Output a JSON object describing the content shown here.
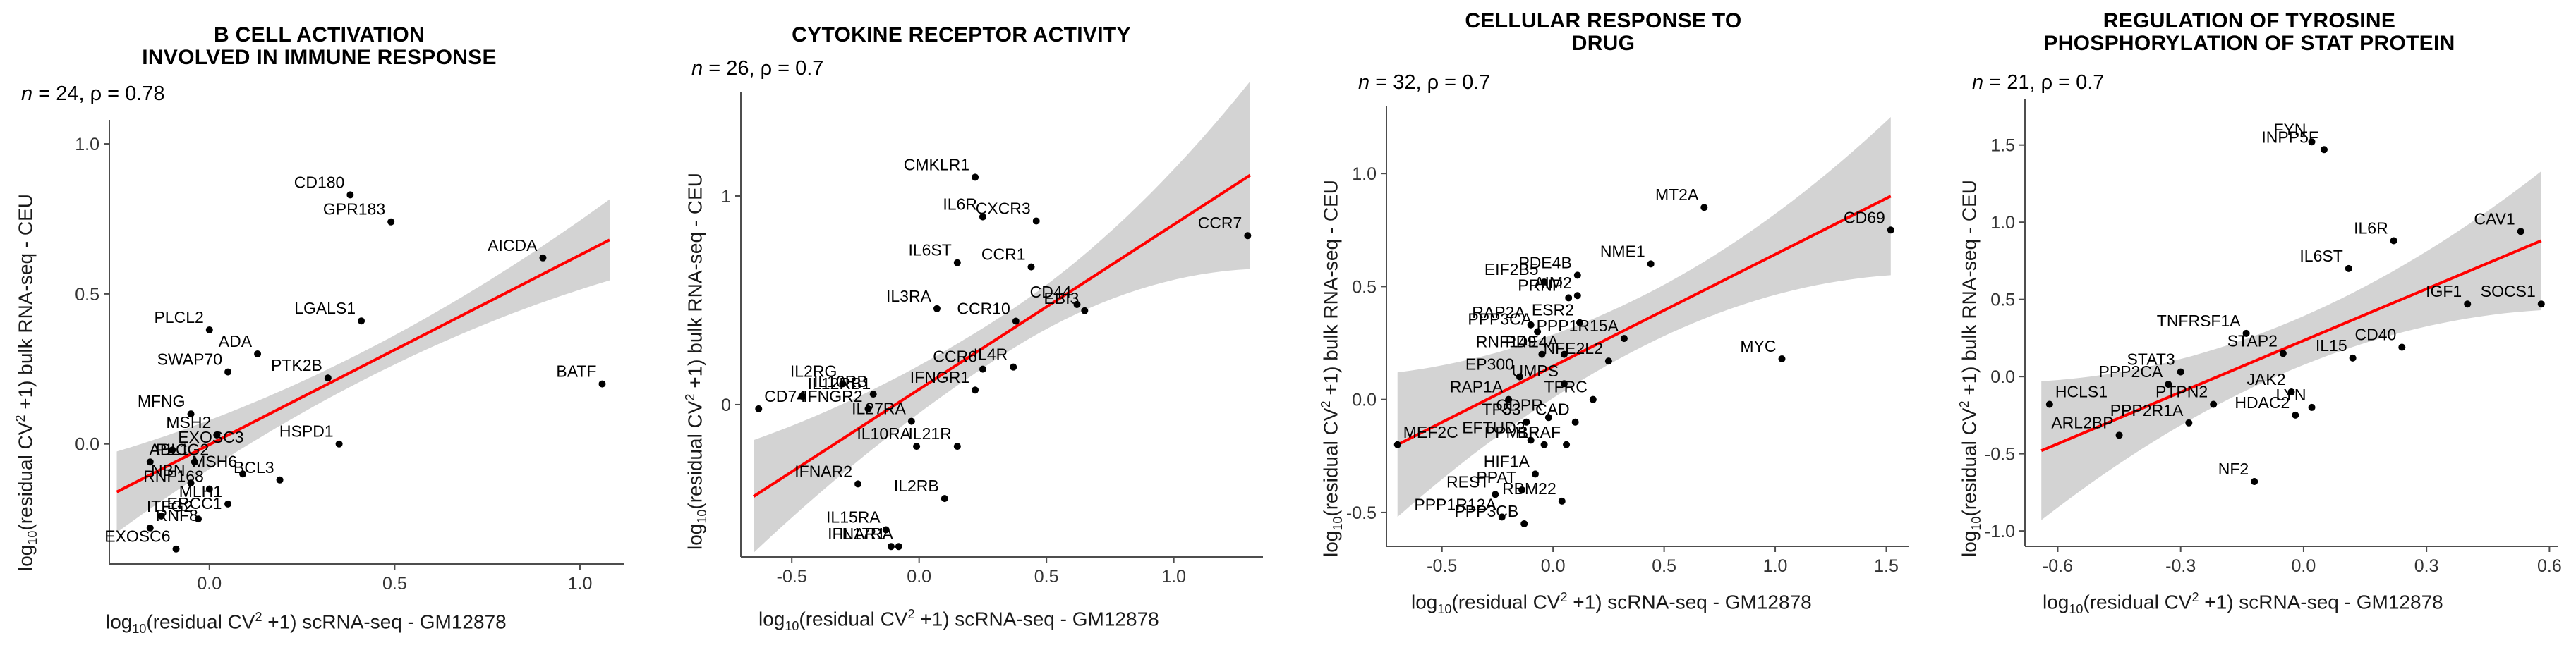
{
  "colors": {
    "band": "#d3d3d3",
    "fit": "#ff0000",
    "point": "#000000",
    "axis": "#4d4d4d",
    "text": "#000000"
  },
  "axis_labels": {
    "x_prefix": "log",
    "x_sub": "10",
    "x_mid": "(residual CV",
    "x_sup": "2",
    "x_suffix": " +1) scRNA-seq - GM12878",
    "y_prefix": "log",
    "y_sub": "10",
    "y_mid": "(residual CV",
    "y_sup": "2",
    "y_suffix": " +1) bulk RNA-seq - CEU"
  },
  "chart_data": [
    {
      "type": "scatter",
      "title": "B CELL ACTIVATION\nINVOLVED IN IMMUNE RESPONSE",
      "n_label": "n",
      "n_text": " = 24, ",
      "rho_text": "ρ = 0.78",
      "xlim": [
        -0.27,
        1.12
      ],
      "ylim": [
        -0.4,
        1.08
      ],
      "xticks": [
        0.0,
        0.5,
        1.0
      ],
      "xticklabels": [
        "0.0",
        "0.5",
        "1.0"
      ],
      "yticks": [
        0.0,
        0.5,
        1.0
      ],
      "yticklabels": [
        "0.0",
        "0.5",
        "1.0"
      ],
      "fit": {
        "x0": -0.25,
        "y0": -0.16,
        "x1": 1.08,
        "y1": 0.68
      },
      "band": {
        "low": [
          -0.3,
          -0.03
        ],
        "high": [
          0.7,
          0.97
        ]
      },
      "points": [
        {
          "label": "CD180",
          "x": 0.38,
          "y": 0.83
        },
        {
          "label": "GPR183",
          "x": 0.49,
          "y": 0.74
        },
        {
          "label": "AICDA",
          "x": 0.9,
          "y": 0.62
        },
        {
          "label": "BATF",
          "x": 1.06,
          "y": 0.2
        },
        {
          "label": "PLCL2",
          "x": 0.0,
          "y": 0.38
        },
        {
          "label": "ADA",
          "x": 0.13,
          "y": 0.3
        },
        {
          "label": "LGALS1",
          "x": 0.41,
          "y": 0.41
        },
        {
          "label": "SWAP70",
          "x": 0.05,
          "y": 0.24
        },
        {
          "label": "PTK2B",
          "x": 0.32,
          "y": 0.22
        },
        {
          "label": "MFNG",
          "x": -0.05,
          "y": 0.1
        },
        {
          "label": "MSH2",
          "x": 0.02,
          "y": 0.03
        },
        {
          "label": "EXOSC3",
          "x": -0.1,
          "y": -0.02
        },
        {
          "label": "HSPD1",
          "x": 0.35,
          "y": 0.0
        },
        {
          "label": "PLCG2",
          "x": -0.16,
          "y": -0.06
        },
        {
          "label": "ABL1",
          "x": -0.04,
          "y": -0.06
        },
        {
          "label": "MSH6",
          "x": 0.09,
          "y": -0.1
        },
        {
          "label": "NBN",
          "x": -0.05,
          "y": -0.13
        },
        {
          "label": "RNF168",
          "x": 0.0,
          "y": -0.15
        },
        {
          "label": "BCL3",
          "x": 0.19,
          "y": -0.12
        },
        {
          "label": "ERCC1",
          "x": -0.13,
          "y": -0.24
        },
        {
          "label": "ITFG2",
          "x": -0.03,
          "y": -0.25
        },
        {
          "label": "MLH1",
          "x": 0.05,
          "y": -0.2
        },
        {
          "label": "RNF8",
          "x": -0.16,
          "y": -0.28
        },
        {
          "label": "EXOSC6",
          "x": -0.09,
          "y": -0.35
        }
      ]
    },
    {
      "type": "scatter",
      "title": "CYTOKINE RECEPTOR ACTIVITY",
      "n_label": "n",
      "n_text": " = 26, ",
      "rho_text": "ρ = 0.7",
      "xlim": [
        -0.7,
        1.35
      ],
      "ylim": [
        -0.73,
        1.5
      ],
      "xticks": [
        -0.5,
        0.0,
        0.5,
        1.0
      ],
      "xticklabels": [
        "-0.5",
        "0.0",
        "0.5",
        "1.0"
      ],
      "yticks": [
        0,
        1
      ],
      "yticklabels": [
        "0",
        "1"
      ],
      "fit": {
        "x0": -0.65,
        "y0": -0.44,
        "x1": 1.3,
        "y1": 1.1
      },
      "band": {
        "low": [
          -0.7,
          -0.16
        ],
        "high": [
          0.55,
          1.45
        ]
      },
      "points": [
        {
          "label": "CMKLR1",
          "x": 0.22,
          "y": 1.09
        },
        {
          "label": "IL6R",
          "x": 0.25,
          "y": 0.9
        },
        {
          "label": "CXCR3",
          "x": 0.46,
          "y": 0.88
        },
        {
          "label": "CCR7",
          "x": 1.29,
          "y": 0.81
        },
        {
          "label": "CCR1",
          "x": 0.44,
          "y": 0.66
        },
        {
          "label": "IL6ST",
          "x": 0.15,
          "y": 0.68
        },
        {
          "label": "IL3RA",
          "x": 0.07,
          "y": 0.46
        },
        {
          "label": "CD44",
          "x": 0.62,
          "y": 0.48
        },
        {
          "label": "EBI3",
          "x": 0.65,
          "y": 0.45
        },
        {
          "label": "CCR10",
          "x": 0.38,
          "y": 0.4
        },
        {
          "label": "CCR6",
          "x": 0.25,
          "y": 0.17
        },
        {
          "label": "IL4R",
          "x": 0.37,
          "y": 0.18
        },
        {
          "label": "IL2RG",
          "x": -0.3,
          "y": 0.1
        },
        {
          "label": "IL12RB1",
          "x": -0.46,
          "y": 0.04
        },
        {
          "label": "IL10RB",
          "x": -0.18,
          "y": 0.05
        },
        {
          "label": "IFNGR2",
          "x": -0.2,
          "y": -0.02
        },
        {
          "label": "IFNGR1",
          "x": 0.22,
          "y": 0.07
        },
        {
          "label": "CD74",
          "x": -0.63,
          "y": -0.02
        },
        {
          "label": "IL27RA",
          "x": -0.03,
          "y": -0.08
        },
        {
          "label": "IL10RA",
          "x": -0.01,
          "y": -0.2
        },
        {
          "label": "IL21R",
          "x": 0.15,
          "y": -0.2
        },
        {
          "label": "IFNAR2",
          "x": -0.24,
          "y": -0.38
        },
        {
          "label": "IL2RB",
          "x": 0.1,
          "y": -0.45
        },
        {
          "label": "IL15RA",
          "x": -0.13,
          "y": -0.6
        },
        {
          "label": "IFNAR1",
          "x": -0.11,
          "y": -0.68
        },
        {
          "label": "IL17RA",
          "x": -0.08,
          "y": -0.68
        }
      ]
    },
    {
      "type": "scatter",
      "title": "CELLULAR RESPONSE TO\nDRUG",
      "n_label": "n",
      "n_text": " = 32, ",
      "rho_text": "ρ = 0.7",
      "xlim": [
        -0.75,
        1.6
      ],
      "ylim": [
        -0.65,
        1.3
      ],
      "xticks": [
        -0.5,
        0.0,
        0.5,
        1.0,
        1.5
      ],
      "xticklabels": [
        "-0.5",
        "0.0",
        "0.5",
        "1.0",
        "1.5"
      ],
      "yticks": [
        -0.5,
        0.0,
        0.5,
        1.0
      ],
      "yticklabels": [
        "-0.5",
        "0.0",
        "0.5",
        "1.0"
      ],
      "fit": {
        "x0": -0.7,
        "y0": -0.2,
        "x1": 1.52,
        "y1": 0.9
      },
      "band": {
        "low": [
          -0.52,
          0.12
        ],
        "high": [
          0.55,
          1.25
        ]
      },
      "points": [
        {
          "label": "MT2A",
          "x": 0.68,
          "y": 0.85
        },
        {
          "label": "CD69",
          "x": 1.52,
          "y": 0.75
        },
        {
          "label": "NME1",
          "x": 0.44,
          "y": 0.6
        },
        {
          "label": "PDE4B",
          "x": 0.11,
          "y": 0.55
        },
        {
          "label": "EIF2B5",
          "x": -0.04,
          "y": 0.52
        },
        {
          "label": "AIM2",
          "x": 0.11,
          "y": 0.46
        },
        {
          "label": "PRNP",
          "x": 0.07,
          "y": 0.45
        },
        {
          "label": "RAP2A",
          "x": -0.1,
          "y": 0.33
        },
        {
          "label": "ESR2",
          "x": 0.12,
          "y": 0.34
        },
        {
          "label": "PPP3CA",
          "x": -0.07,
          "y": 0.3
        },
        {
          "label": "PPP1R15A",
          "x": 0.32,
          "y": 0.27
        },
        {
          "label": "MYC",
          "x": 1.03,
          "y": 0.18
        },
        {
          "label": "RNF149",
          "x": -0.05,
          "y": 0.2
        },
        {
          "label": "PDE4A",
          "x": 0.05,
          "y": 0.2
        },
        {
          "label": "NFE2L2",
          "x": 0.25,
          "y": 0.17
        },
        {
          "label": "EP300",
          "x": -0.15,
          "y": 0.1
        },
        {
          "label": "UMPS",
          "x": 0.05,
          "y": 0.07
        },
        {
          "label": "TFRC",
          "x": 0.18,
          "y": 0.0
        },
        {
          "label": "RAP1A",
          "x": -0.2,
          "y": 0.0
        },
        {
          "label": "MEF2C",
          "x": -0.7,
          "y": -0.2
        },
        {
          "label": "TP53",
          "x": -0.12,
          "y": -0.1
        },
        {
          "label": "QDPR",
          "x": -0.02,
          "y": -0.08
        },
        {
          "label": "CAD",
          "x": 0.1,
          "y": -0.1
        },
        {
          "label": "EFTUD2",
          "x": -0.1,
          "y": -0.18
        },
        {
          "label": "PPM1F",
          "x": -0.04,
          "y": -0.2
        },
        {
          "label": "BRAF",
          "x": 0.06,
          "y": -0.2
        },
        {
          "label": "HIF1A",
          "x": -0.08,
          "y": -0.33
        },
        {
          "label": "REST",
          "x": -0.26,
          "y": -0.42
        },
        {
          "label": "PPAT",
          "x": -0.14,
          "y": -0.4
        },
        {
          "label": "RBM22",
          "x": 0.04,
          "y": -0.45
        },
        {
          "label": "PPP1R12A",
          "x": -0.23,
          "y": -0.52
        },
        {
          "label": "PPP3CB",
          "x": -0.13,
          "y": -0.55
        }
      ]
    },
    {
      "type": "scatter",
      "title": "REGULATION OF TYROSINE\nPHOSPHORYLATION OF STAT PROTEIN",
      "n_label": "n",
      "n_text": " = 21, ",
      "rho_text": "ρ = 0.7",
      "xlim": [
        -0.68,
        0.62
      ],
      "ylim": [
        -1.1,
        1.8
      ],
      "xticks": [
        -0.6,
        -0.3,
        0.0,
        0.3,
        0.6
      ],
      "xticklabels": [
        "-0.6",
        "-0.3",
        "0.0",
        "0.3",
        "0.6"
      ],
      "yticks": [
        -1.0,
        -0.5,
        0.0,
        0.5,
        1.0,
        1.5
      ],
      "yticklabels": [
        "-1.0",
        "-0.5",
        "0.0",
        "0.5",
        "1.0",
        "1.5"
      ],
      "fit": {
        "x0": -0.64,
        "y0": -0.48,
        "x1": 0.58,
        "y1": 0.88
      },
      "band": {
        "low": [
          -0.95,
          -0.05
        ],
        "high": [
          0.45,
          1.35
        ]
      },
      "points": [
        {
          "label": "FYN",
          "x": 0.02,
          "y": 1.52
        },
        {
          "label": "INPP5F",
          "x": 0.05,
          "y": 1.47
        },
        {
          "label": "IL6R",
          "x": 0.22,
          "y": 0.88
        },
        {
          "label": "CAV1",
          "x": 0.53,
          "y": 0.94
        },
        {
          "label": "IL6ST",
          "x": 0.11,
          "y": 0.7
        },
        {
          "label": "IGF1",
          "x": 0.4,
          "y": 0.47
        },
        {
          "label": "SOCS1",
          "x": 0.58,
          "y": 0.47
        },
        {
          "label": "TNFRSF1A",
          "x": -0.14,
          "y": 0.28
        },
        {
          "label": "CD40",
          "x": 0.24,
          "y": 0.19
        },
        {
          "label": "STAP2",
          "x": -0.05,
          "y": 0.15
        },
        {
          "label": "IL15",
          "x": 0.12,
          "y": 0.12
        },
        {
          "label": "STAT3",
          "x": -0.3,
          "y": 0.03
        },
        {
          "label": "PPP2CA",
          "x": -0.33,
          "y": -0.05
        },
        {
          "label": "JAK2",
          "x": -0.03,
          "y": -0.1
        },
        {
          "label": "PTPN2",
          "x": -0.22,
          "y": -0.18
        },
        {
          "label": "LYN",
          "x": 0.02,
          "y": -0.2
        },
        {
          "label": "HCLS1",
          "x": -0.62,
          "y": -0.18
        },
        {
          "label": "HDAC2",
          "x": -0.02,
          "y": -0.25
        },
        {
          "label": "ARL2BP",
          "x": -0.45,
          "y": -0.38
        },
        {
          "label": "PPP2R1A",
          "x": -0.28,
          "y": -0.3
        },
        {
          "label": "NF2",
          "x": -0.12,
          "y": -0.68
        }
      ]
    }
  ]
}
